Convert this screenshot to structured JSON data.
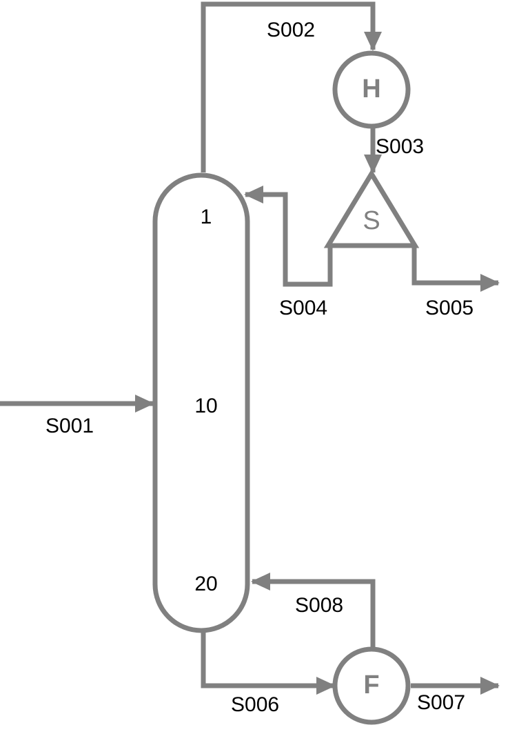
{
  "colors": {
    "line": "#808080",
    "text": "#000000",
    "background": "#ffffff"
  },
  "column": {
    "stage_top": "1",
    "stage_feed": "10",
    "stage_bottom": "20"
  },
  "units": {
    "heater": "H",
    "splitter": "S",
    "flash": "F"
  },
  "streams": {
    "s001": "S001",
    "s002": "S002",
    "s003": "S003",
    "s004": "S004",
    "s005": "S005",
    "s006": "S006",
    "s007": "S007",
    "s008": "S008"
  }
}
